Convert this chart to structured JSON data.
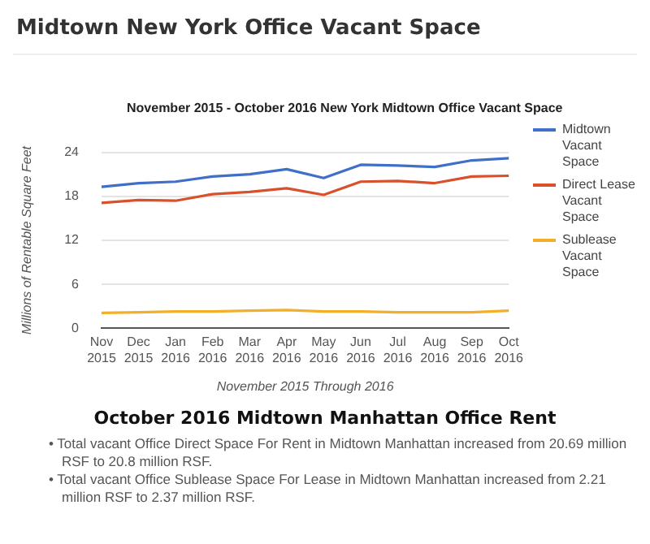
{
  "chart_data": {
    "type": "line",
    "title": "Midtown New York Office Vacant Space",
    "subtitle": "November 2015 - October 2016 New York Midtown Office Vacant Space",
    "xlabel": "November 2015 Through 2016",
    "ylabel": "Millions of Rentable Square Feet",
    "categories": [
      "Nov 2015",
      "Dec 2015",
      "Jan 2016",
      "Feb 2016",
      "Mar 2016",
      "Apr 2016",
      "May 2016",
      "Jun 2016",
      "Jul 2016",
      "Aug 2016",
      "Sep 2016",
      "Oct 2016"
    ],
    "series": [
      {
        "name": "Midtown Vacant Space",
        "color": "#3f6fc6",
        "values": [
          19.3,
          19.8,
          20.0,
          20.7,
          21.0,
          21.7,
          20.5,
          22.3,
          22.2,
          22.0,
          22.9,
          23.2
        ]
      },
      {
        "name": "Direct Lease Vacant Space",
        "color": "#d9512c",
        "values": [
          17.1,
          17.5,
          17.4,
          18.3,
          18.6,
          19.1,
          18.2,
          20.0,
          20.1,
          19.8,
          20.7,
          20.8
        ]
      },
      {
        "name": "Sublease Vacant Space",
        "color": "#f2b02a",
        "values": [
          2.1,
          2.2,
          2.3,
          2.3,
          2.4,
          2.5,
          2.3,
          2.3,
          2.2,
          2.2,
          2.2,
          2.4
        ]
      }
    ],
    "ylim": [
      0,
      24
    ],
    "yticks": [
      0,
      6,
      12,
      18,
      24
    ],
    "grid": "y",
    "legend": "right",
    "marker": "none",
    "line_style": "solid",
    "annotations": [
      "October 2016 Midtown Manhattan Office Rent",
      "• Total vacant Office Direct Space For Rent in Midtown Manhattan increased from 20.69 million RSF to 20.8 million RSF.",
      "• Total vacant Office Sublease Space For Lease in Midtown Manhattan increased from 2.21 million RSF to 2.37 million RSF."
    ]
  }
}
